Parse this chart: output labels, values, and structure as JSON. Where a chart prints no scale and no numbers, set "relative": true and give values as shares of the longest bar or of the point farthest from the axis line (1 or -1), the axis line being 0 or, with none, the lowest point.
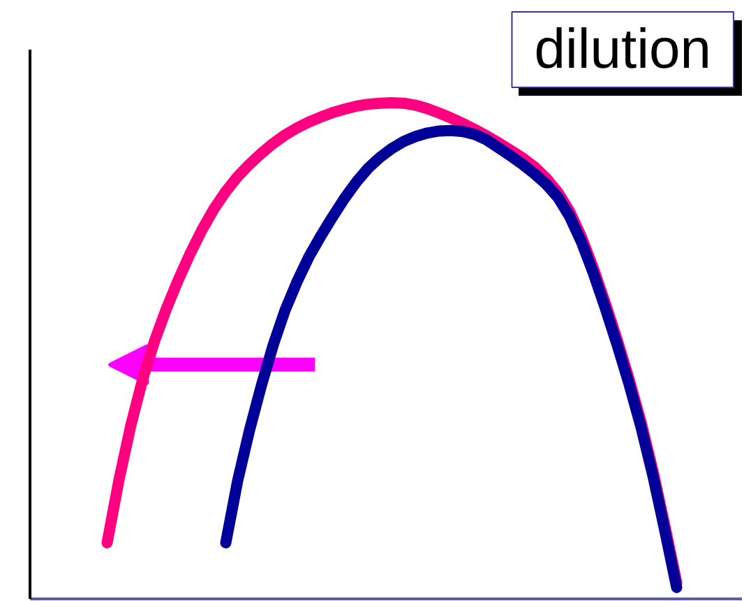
{
  "chart_data": {
    "type": "line",
    "title": "dilution",
    "relative": true,
    "line_style": "solid",
    "categories": [
      null,
      null,
      null,
      null,
      null,
      null,
      null,
      null,
      null,
      null,
      null,
      null,
      null,
      null,
      null,
      null,
      null,
      null,
      null,
      null,
      null,
      null,
      null,
      null,
      null,
      null,
      null,
      null,
      null,
      null,
      null,
      null,
      null,
      null,
      null,
      null,
      null,
      null,
      null,
      null,
      null,
      null,
      null,
      null,
      null,
      null,
      null,
      null,
      null,
      null,
      null,
      null,
      null,
      null,
      null,
      null,
      null,
      null,
      null,
      null
    ],
    "series": [
      {
        "color": "#ff0080",
        "values": [
          null,
          null,
          null,
          null,
          null,
          null,
          0.113,
          0.24,
          0.35,
          0.443,
          0.52,
          0.585,
          0.643,
          0.696,
          0.744,
          0.786,
          0.821,
          0.851,
          0.876,
          0.898,
          0.918,
          0.935,
          0.949,
          0.961,
          0.971,
          0.98,
          0.987,
          0.993,
          0.997,
          0.999,
          1.0,
          0.999,
          0.995,
          0.988,
          0.979,
          0.969,
          0.958,
          0.946,
          0.933,
          0.919,
          0.904,
          0.889,
          0.871,
          0.848,
          0.819,
          0.78,
          0.728,
          0.665,
          0.595,
          0.521,
          0.442,
          0.356,
          0.258,
          0.148,
          0.033,
          null,
          null,
          null,
          null,
          null
        ]
      },
      {
        "color": "#000099",
        "values": [
          null,
          null,
          null,
          null,
          null,
          null,
          null,
          null,
          null,
          null,
          null,
          null,
          null,
          null,
          null,
          null,
          0.113,
          0.238,
          0.34,
          0.43,
          0.512,
          0.582,
          0.639,
          0.689,
          0.731,
          0.77,
          0.807,
          0.84,
          0.868,
          0.89,
          0.908,
          0.922,
          0.932,
          0.939,
          0.943,
          0.944,
          0.942,
          0.936,
          0.925,
          0.909,
          0.893,
          0.876,
          0.857,
          0.836,
          0.809,
          0.77,
          0.718,
          0.655,
          0.585,
          0.511,
          0.432,
          0.346,
          0.248,
          0.138,
          0.023,
          null,
          null,
          null,
          null,
          null
        ]
      }
    ]
  }
}
